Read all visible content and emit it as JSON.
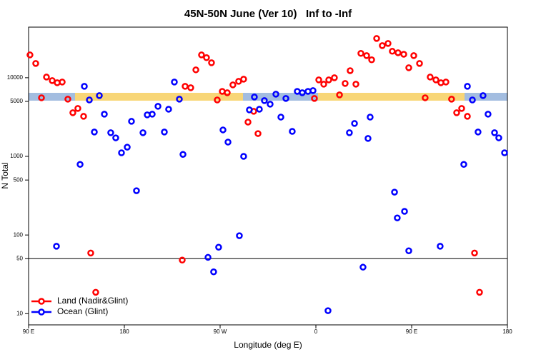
{
  "chart_data": {
    "type": "scatter",
    "title": "45N-50N June (Ver 10)   Inf to -Inf",
    "x_label": "Longitude (deg E)",
    "y_label": "N Total",
    "log_y": true,
    "legend": "bottom-left",
    "hline": 50,
    "xlim": [
      90,
      540
    ],
    "xticks": [
      {
        "value": 90,
        "label": "90 E"
      },
      {
        "value": 180,
        "label": "180"
      },
      {
        "value": 270,
        "label": "90 W"
      },
      {
        "value": 360,
        "label": "0"
      },
      {
        "value": 450,
        "label": "90 E"
      },
      {
        "value": 540,
        "label": "180"
      }
    ],
    "ylim": [
      7.2,
      44000
    ],
    "yticks": [
      10,
      50,
      100,
      500,
      1000,
      5000,
      10000
    ],
    "series": [
      {
        "name": "Land (Nadir&Glint)",
        "color": "#ff0000",
        "x": [
          91.3,
          96.7,
          102.1,
          106.8,
          112.2,
          116.9,
          121.6,
          126.9,
          131.6,
          136.3,
          141.7,
          148.4,
          153.1,
          234.4,
          237.1,
          242.4,
          247.2,
          252.5,
          257.2,
          261.9,
          267.3,
          272.0,
          276.7,
          282.0,
          287.4,
          292.1,
          296.2,
          301.6,
          305.6,
          358.6,
          362.7,
          367.4,
          372.1,
          377.4,
          382.2,
          387.5,
          392.2,
          397.6,
          402.3,
          407.7,
          412.4,
          417.1,
          422.4,
          427.8,
          431.8,
          437.2,
          442.6,
          447.3,
          452.0,
          457.4,
          462.7,
          467.4,
          472.8,
          477.5,
          482.2,
          487.5,
          492.3,
          497.0,
          502.4,
          509.1,
          513.8
        ],
        "values": [
          19500,
          15200,
          5560,
          10200,
          9200,
          8640,
          8820,
          5340,
          3590,
          4070,
          3230,
          59,
          18.7,
          48,
          7780,
          7460,
          12600,
          19500,
          18000,
          15500,
          5220,
          6710,
          6440,
          8110,
          9010,
          9590,
          2730,
          3740,
          1950,
          5450,
          9390,
          8280,
          9390,
          10000,
          6050,
          8460,
          12300,
          8280,
          20400,
          19100,
          16900,
          31600,
          25600,
          27300,
          21700,
          20800,
          19900,
          13400,
          19100,
          15200,
          5560,
          10200,
          9390,
          8640,
          8820,
          5340,
          3590,
          4070,
          3230,
          59,
          18.7
        ]
      },
      {
        "name": "Ocean (Glint)",
        "color": "#0000ff",
        "x": [
          116.2,
          138.4,
          142.4,
          147.1,
          151.8,
          156.5,
          161.2,
          167.2,
          171.9,
          177.3,
          182.7,
          186.7,
          191.4,
          197.5,
          201.5,
          206.2,
          211.6,
          217.6,
          221.6,
          227.0,
          231.7,
          235.1,
          258.6,
          263.9,
          268.6,
          272.7,
          277.4,
          288.1,
          292.1,
          297.5,
          302.2,
          306.9,
          311.6,
          317.0,
          322.4,
          327.1,
          331.8,
          337.8,
          342.5,
          347.2,
          352.6,
          357.3,
          371.4,
          391.5,
          396.3,
          404.3,
          409.0,
          411.0,
          433.9,
          436.5,
          443.3,
          447.3,
          476.8,
          499.0,
          502.4,
          507.1,
          512.4,
          517.1,
          521.8,
          527.9,
          531.9,
          537.3
        ],
        "values": [
          72,
          790,
          7780,
          5220,
          2040,
          5930,
          3440,
          2000,
          1720,
          1110,
          1310,
          2790,
          366,
          2000,
          3370,
          3440,
          4330,
          2040,
          3980,
          8820,
          5340,
          1060,
          52,
          34,
          70,
          2170,
          1520,
          98,
          1000,
          3900,
          5690,
          3980,
          5120,
          4610,
          6180,
          3160,
          5450,
          2080,
          6710,
          6440,
          6710,
          6860,
          10.9,
          2000,
          2620,
          39,
          1690,
          3160,
          351,
          165,
          200,
          63,
          72,
          790,
          7780,
          5220,
          2040,
          5930,
          3440,
          2000,
          1720,
          1110
        ]
      }
    ]
  }
}
